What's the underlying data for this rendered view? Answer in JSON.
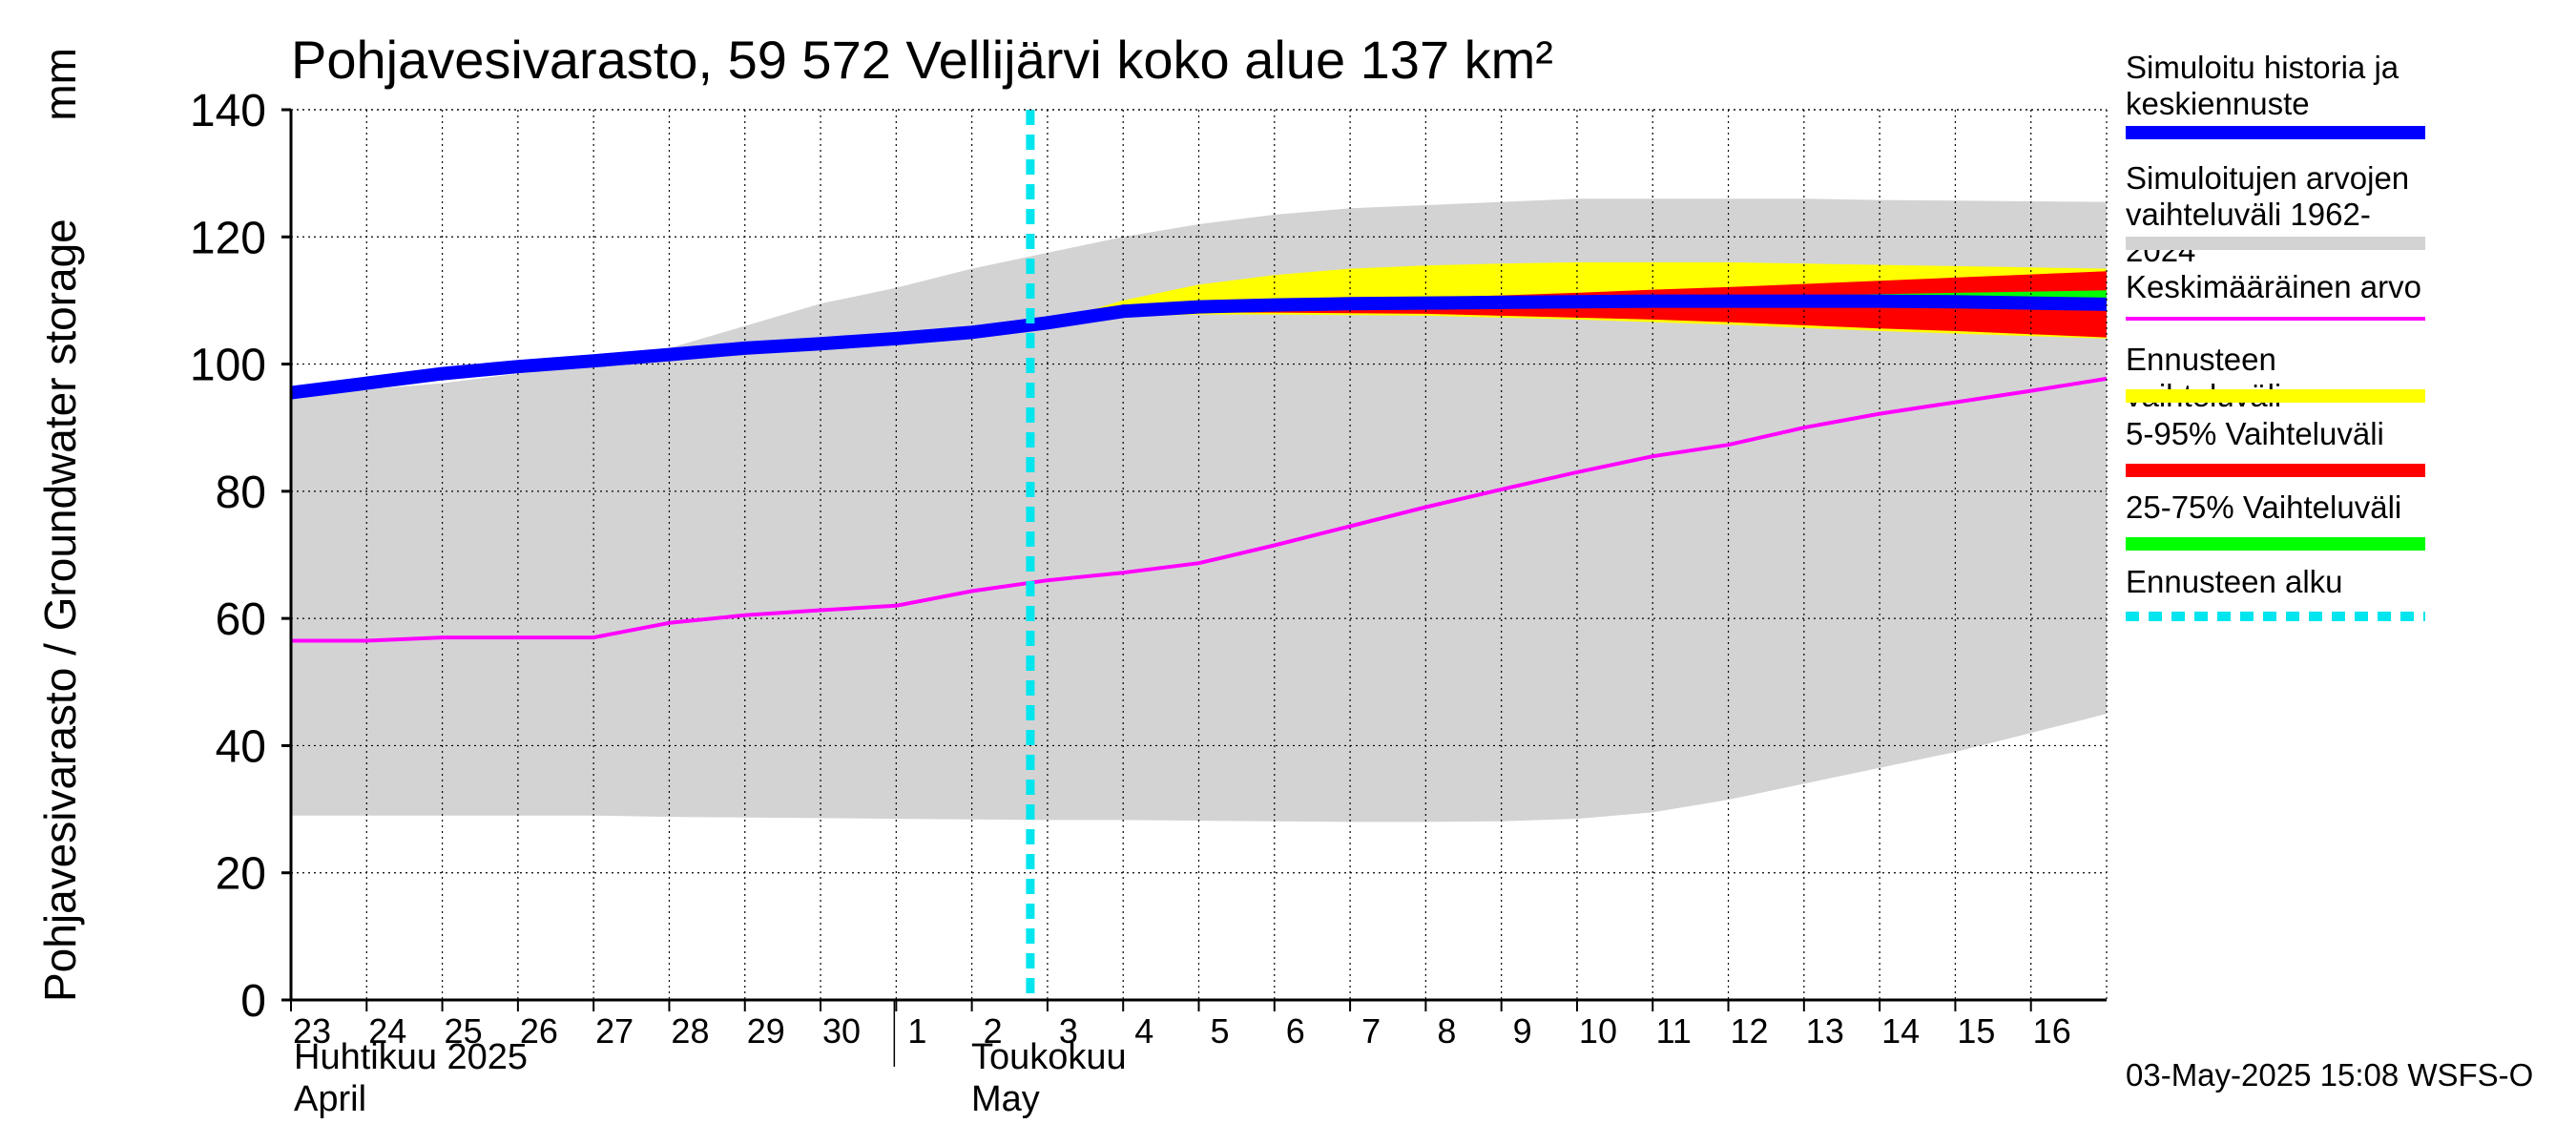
{
  "title": "Pohjavesivarasto, 59 572 Vellijärvi koko alue 137 km²",
  "y_axis": {
    "label": "Pohjavesivarasto / Groundwater storage",
    "unit": "mm"
  },
  "months": [
    {
      "fi": "Huhtikuu  2025",
      "en": "April"
    },
    {
      "fi": "Toukokuu",
      "en": "May"
    }
  ],
  "timestamp": "03-May-2025 15:08 WSFS-O",
  "legend": [
    {
      "label": "Simuloitu historia ja\nkeskiennuste",
      "color": "#0000ff",
      "style": "solid"
    },
    {
      "label": "Simuloitujen arvojen\nvaihteluväli 1962-2024",
      "color": "#d3d3d3",
      "style": "solid"
    },
    {
      "label": "Keskimääräinen arvo",
      "color": "#ff00ff",
      "style": "thin"
    },
    {
      "label": "Ennusteen vaihteluväli",
      "color": "#ffff00",
      "style": "solid"
    },
    {
      "label": "5-95% Vaihteluväli",
      "color": "#ff0000",
      "style": "solid"
    },
    {
      "label": "25-75% Vaihteluväli",
      "color": "#00ff00",
      "style": "solid"
    },
    {
      "label": "Ennusteen alku",
      "color": "#00e5ee",
      "style": "dashed"
    }
  ],
  "chart_data": {
    "type": "area",
    "title": "Pohjavesivarasto, 59 572 Vellijärvi koko alue 137 km²",
    "ylabel": "Pohjavesivarasto / Groundwater storage   mm",
    "ylim": [
      0,
      140
    ],
    "yticks": [
      0,
      20,
      40,
      60,
      80,
      100,
      120,
      140
    ],
    "grid": true,
    "x": [
      "23",
      "24",
      "25",
      "26",
      "27",
      "28",
      "29",
      "30",
      "1",
      "2",
      "3",
      "4",
      "5",
      "6",
      "7",
      "8",
      "9",
      "10",
      "11",
      "12",
      "13",
      "14",
      "15",
      "16",
      "17"
    ],
    "xticklabels": [
      "23",
      "24",
      "25",
      "26",
      "27",
      "28",
      "29",
      "30",
      "1",
      "2",
      "3",
      "4",
      "5",
      "6",
      "7",
      "8",
      "9",
      "10",
      "11",
      "12",
      "13",
      "14",
      "15",
      "16"
    ],
    "forecast_start": "3",
    "series": [
      {
        "name": "Simuloitujen arvojen vaihteluväli 1962-2024",
        "kind": "band",
        "lower": [
          29,
          29,
          29,
          29,
          29,
          28.8,
          28.7,
          28.6,
          28.5,
          28.4,
          28.3,
          28.3,
          28.2,
          28.1,
          28,
          28,
          28.1,
          28.5,
          29.5,
          31.5,
          34,
          36.5,
          39,
          42,
          45
        ],
        "upper": [
          95,
          96,
          97,
          98.5,
          100.5,
          102.5,
          106,
          109.5,
          112,
          115,
          117.5,
          120,
          122,
          123.5,
          124.5,
          125,
          125.5,
          126,
          126,
          126,
          126,
          125.8,
          125.7,
          125.6,
          125.5
        ]
      },
      {
        "name": "Ennusteen vaihteluväli",
        "kind": "band",
        "lower": [
          null,
          null,
          null,
          null,
          null,
          null,
          null,
          null,
          null,
          null,
          106.5,
          107.5,
          107.8,
          107.8,
          107.7,
          107.6,
          107.3,
          107,
          106.6,
          106.2,
          105.7,
          105.2,
          104.8,
          104.4,
          104
        ],
        "upper": [
          null,
          null,
          null,
          null,
          null,
          null,
          null,
          null,
          null,
          null,
          106.5,
          110,
          112.5,
          114,
          115,
          115.5,
          115.8,
          116,
          116,
          116,
          115.8,
          115.6,
          115.4,
          115.2,
          115
        ]
      },
      {
        "name": "5-95% Vaihteluväli",
        "kind": "band",
        "lower": [
          null,
          null,
          null,
          null,
          null,
          null,
          null,
          null,
          null,
          null,
          106.5,
          107.8,
          108.1,
          108.1,
          108,
          107.9,
          107.6,
          107.3,
          107,
          106.6,
          106.1,
          105.6,
          105.2,
          104.7,
          104.2
        ],
        "upper": [
          null,
          null,
          null,
          null,
          null,
          null,
          null,
          null,
          null,
          null,
          106.5,
          108.5,
          109.4,
          109.9,
          110.2,
          110.5,
          110.8,
          111.2,
          111.7,
          112.1,
          112.6,
          113.1,
          113.6,
          114.1,
          114.6
        ]
      },
      {
        "name": "25-75% Vaihteluväli",
        "kind": "band",
        "lower": [
          null,
          null,
          null,
          null,
          null,
          null,
          null,
          null,
          null,
          null,
          106.5,
          108,
          108.7,
          108.9,
          109,
          109.1,
          109.1,
          109.1,
          109.1,
          109,
          109,
          108.9,
          108.8,
          108.7,
          108.6
        ],
        "upper": [
          null,
          null,
          null,
          null,
          null,
          null,
          null,
          null,
          null,
          null,
          106.5,
          108.2,
          109,
          109.4,
          109.6,
          109.8,
          110,
          110.2,
          110.4,
          110.6,
          110.8,
          111,
          111.2,
          111.4,
          111.6
        ]
      },
      {
        "name": "Simuloitu historia ja keskiennuste",
        "kind": "line",
        "values": [
          95.5,
          97,
          98.5,
          99.6,
          100.5,
          101.5,
          102.5,
          103.2,
          104,
          105,
          106.5,
          108.3,
          109,
          109.3,
          109.5,
          109.6,
          109.7,
          109.8,
          109.9,
          109.9,
          109.9,
          109.9,
          109.8,
          109.6,
          109.4
        ]
      },
      {
        "name": "Keskimääräinen arvo",
        "kind": "line",
        "values": [
          56.5,
          56.5,
          57,
          57,
          57,
          59.3,
          60.5,
          61.3,
          62,
          64.3,
          66,
          67.2,
          68.7,
          71.5,
          74.5,
          77.5,
          80.3,
          83,
          85.5,
          87.3,
          90,
          92.2,
          94,
          95.8,
          97.7
        ]
      }
    ]
  }
}
